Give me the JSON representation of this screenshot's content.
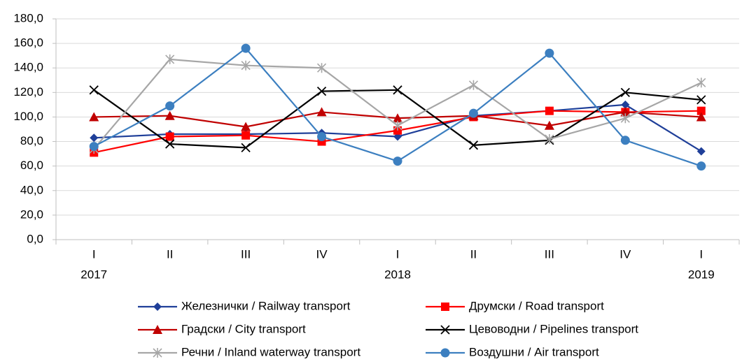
{
  "chart_data": {
    "type": "line",
    "categories": [
      "I",
      "II",
      "III",
      "IV",
      "I",
      "II",
      "III",
      "IV",
      "I"
    ],
    "years": [
      "2017",
      null,
      null,
      null,
      "2018",
      null,
      null,
      null,
      "2019"
    ],
    "ylim": [
      0,
      180
    ],
    "yticks": [
      {
        "value": 0,
        "label": "0,0"
      },
      {
        "value": 20,
        "label": "20,0"
      },
      {
        "value": 40,
        "label": "40,0"
      },
      {
        "value": 60,
        "label": "60,0"
      },
      {
        "value": 80,
        "label": "80,0"
      },
      {
        "value": 100,
        "label": "100,0"
      },
      {
        "value": 120,
        "label": "120,0"
      },
      {
        "value": 140,
        "label": "140,0"
      },
      {
        "value": 160,
        "label": "160,0"
      },
      {
        "value": 180,
        "label": "180,0"
      }
    ],
    "grid": true,
    "legend": "bottom",
    "series": [
      {
        "name": "Железнички / Railway transport",
        "color": "#1f3f99",
        "marker": "diamond",
        "values": [
          83,
          86,
          86,
          87,
          84,
          101,
          105,
          110,
          72
        ]
      },
      {
        "name": "Друмски / Road transport",
        "color": "#ff0000",
        "marker": "square",
        "values": [
          71,
          84,
          85,
          80,
          89,
          100,
          105,
          104,
          105
        ]
      },
      {
        "name": "Градски / City transport",
        "color": "#c00000",
        "marker": "triangle",
        "values": [
          100,
          101,
          92,
          104,
          99,
          101,
          93,
          104,
          100
        ]
      },
      {
        "name": "Цевоводни / Pipelines transport",
        "color": "#000000",
        "marker": "x",
        "values": [
          122,
          78,
          75,
          121,
          122,
          77,
          81,
          120,
          114
        ]
      },
      {
        "name": "Речни / Inland waterway transport",
        "color": "#a6a6a6",
        "marker": "star",
        "values": [
          74,
          147,
          142,
          140,
          93,
          126,
          82,
          99,
          128
        ]
      },
      {
        "name": "Воздушни / Air transport",
        "color": "#3c7fc0",
        "marker": "circle",
        "values": [
          76,
          109,
          156,
          84,
          64,
          103,
          152,
          81,
          60
        ]
      }
    ]
  }
}
